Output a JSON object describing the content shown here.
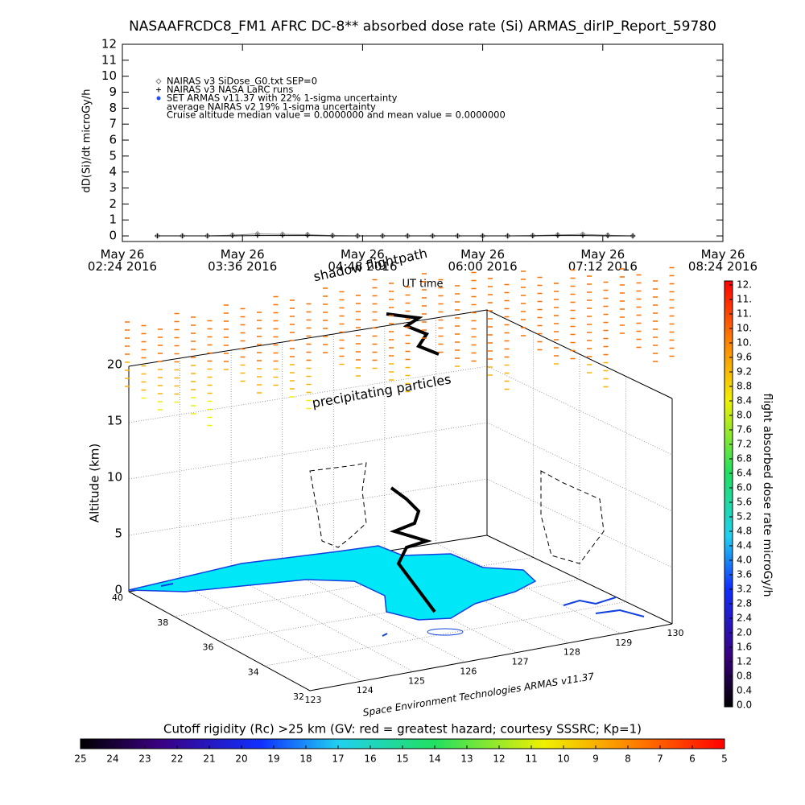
{
  "chart_data": [
    {
      "type": "line",
      "title": "NASAAFRCDC8_FM1 AFRC DC-8** absorbed dose rate (Si) ARMAS_dirIP_Report_59780",
      "ylabel": "dD(Si)/dt microGy/h",
      "xlabel": "UT time",
      "xlim": [
        2.4,
        8.4
      ],
      "xticks": [
        {
          "value": 2.4,
          "label": "May 26\n02:24 2016"
        },
        {
          "value": 3.6,
          "label": "May 26\n03:36 2016"
        },
        {
          "value": 4.8,
          "label": "May 26\n04:48 2016"
        },
        {
          "value": 6.0,
          "label": "May 26\n06:00 2016"
        },
        {
          "value": 7.2,
          "label": "May 26\n07:12 2016"
        },
        {
          "value": 8.4,
          "label": "May 26\n08:24 2016"
        }
      ],
      "ylim": [
        -0.35,
        12
      ],
      "yticks": [
        0,
        1,
        2,
        3,
        4,
        5,
        6,
        7,
        8,
        9,
        10,
        11,
        12
      ],
      "series": [
        {
          "name": "NAIRAS v3 SiDose_G0.txt SEP=0",
          "color": "#808080",
          "marker": "diamond",
          "x": [
            2.75,
            3.0,
            3.25,
            3.5,
            3.75,
            4.0,
            4.25,
            4.5,
            4.75,
            5.0,
            5.25,
            5.5,
            5.75,
            6.0,
            6.25,
            6.5,
            6.75,
            7.0,
            7.25,
            7.5
          ],
          "values": [
            0,
            0,
            0,
            0.05,
            0.12,
            0.1,
            0.08,
            0.02,
            0,
            0,
            0,
            0,
            0,
            0,
            0,
            0.02,
            0.06,
            0.1,
            0.04,
            0
          ]
        },
        {
          "name": "NAIRAS v3 NASA LaRC runs",
          "color": "#000000",
          "marker": "plus",
          "x": [
            2.75,
            3.0,
            3.25,
            3.5,
            3.75,
            4.0,
            4.25,
            4.5,
            4.75,
            5.0,
            5.25,
            5.5,
            5.75,
            6.0,
            6.25,
            6.5,
            6.75,
            7.0,
            7.25,
            7.5
          ],
          "values": [
            0,
            0,
            0,
            0,
            0.02,
            0.02,
            0.02,
            0,
            0,
            0,
            0,
            0,
            0,
            0,
            0,
            0,
            0.02,
            0.02,
            0,
            0
          ]
        }
      ],
      "legend_extra": [
        {
          "name": "SET ARMAS v11.37 with 22% 1-sigma uncertainty",
          "color": "#1f4fff",
          "marker": "dot"
        }
      ],
      "notes": [
        "average NAIRAS v2 19% 1-sigma uncertainty",
        "Cruise altitude median value = 0.0000000 and mean value = 0.0000000"
      ]
    },
    {
      "type": "surface3d",
      "zlabel": "Altitude (km)",
      "zlim": [
        0,
        20
      ],
      "zticks": [
        0,
        5,
        10,
        15,
        20
      ],
      "latlim": [
        40,
        32
      ],
      "latticks": [
        40,
        38,
        36,
        34,
        32
      ],
      "lonlim": [
        123,
        130
      ],
      "lonticks": [
        123,
        124,
        125,
        126,
        127,
        128,
        129,
        130
      ],
      "annotations": [
        "shadow flightpath",
        "precipitating particles"
      ],
      "credit": "Space Environment Technologies ARMAS v11.37",
      "colorbar": {
        "label": "flight absorbed dose rate microGy/h",
        "lim": [
          0,
          11.6
        ],
        "ticks": [
          {
            "value": 0,
            "label": "0.0"
          },
          {
            "value": 0.4,
            "label": "0.4"
          },
          {
            "value": 0.8,
            "label": "0.8"
          },
          {
            "value": 1.2,
            "label": "1.2"
          },
          {
            "value": 1.6,
            "label": "1.6"
          },
          {
            "value": 2.0,
            "label": "2.0"
          },
          {
            "value": 2.4,
            "label": "2.4"
          },
          {
            "value": 2.8,
            "label": "2.8"
          },
          {
            "value": 3.2,
            "label": "3.2"
          },
          {
            "value": 3.6,
            "label": "3.6"
          },
          {
            "value": 4.0,
            "label": "4.0"
          },
          {
            "value": 4.4,
            "label": "4.4"
          },
          {
            "value": 4.8,
            "label": "4.8"
          },
          {
            "value": 5.2,
            "label": "5.2"
          },
          {
            "value": 5.6,
            "label": "5.6"
          },
          {
            "value": 6.0,
            "label": "6.0"
          },
          {
            "value": 6.4,
            "label": "6.4"
          },
          {
            "value": 6.8,
            "label": "6.8"
          },
          {
            "value": 7.2,
            "label": "7.2"
          },
          {
            "value": 7.6,
            "label": "7.6"
          },
          {
            "value": 8.0,
            "label": "8.0"
          },
          {
            "value": 8.4,
            "label": "8.4"
          },
          {
            "value": 8.8,
            "label": "8.8"
          },
          {
            "value": 9.2,
            "label": "9.2"
          },
          {
            "value": 9.6,
            "label": "9.6"
          },
          {
            "value": 10.0,
            "label": "10."
          },
          {
            "value": 10.4,
            "label": "10."
          },
          {
            "value": 10.8,
            "label": "11."
          },
          {
            "value": 11.2,
            "label": "11."
          },
          {
            "value": 11.6,
            "label": "12."
          }
        ]
      },
      "colorbar2": {
        "title": "Cutoff rigidity (Rc) >25 km (GV: red = greatest hazard; courtesy SSSRC; Kp=1)",
        "lim": [
          25,
          5
        ],
        "ticks": [
          25,
          24,
          23,
          22,
          21,
          20,
          19,
          18,
          17,
          16,
          15,
          14,
          13,
          12,
          11,
          10,
          9,
          8,
          7,
          6,
          5
        ]
      }
    }
  ]
}
